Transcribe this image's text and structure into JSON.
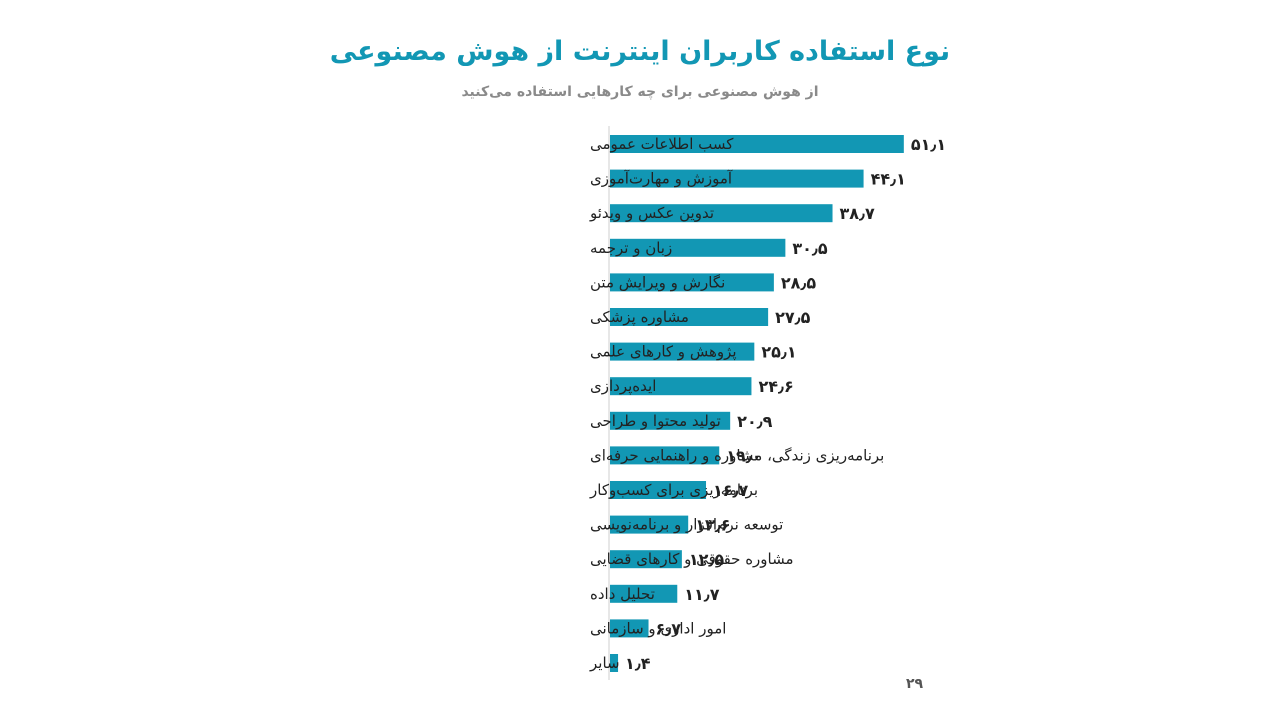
{
  "header": {
    "title": "نوع استفاده کاربران اینترنت از هوش مصنوعی",
    "subtitle": "از هوش مصنوعی برای چه کارهایی استفاده می‌کنید"
  },
  "footer": {
    "page_number": "۲۹"
  },
  "colors": {
    "bar": "#1297b4",
    "title": "#1297b4",
    "axis": "#cfcfcf"
  },
  "chart_data": {
    "type": "bar",
    "orientation": "horizontal",
    "title": "نوع استفاده کاربران اینترنت از هوش مصنوعی",
    "subtitle": "از هوش مصنوعی برای چه کارهایی استفاده می‌کنید",
    "categories": [
      "کسب اطلاعات عمومی",
      "آموزش و مهارت‌آموزی",
      "تدوین عکس و ویدئو",
      "زبان و ترجمه",
      "نگارش و ویرایش متن",
      "مشاوره پزشکی",
      "پژوهش و کارهای علمی",
      "ایده‌پردازی",
      "تولید محتوا و طراحی",
      "برنامه‌ریزی زندگی، مشاوره و راهنمایی حرفه‌ای",
      "برنامه‌ریزی برای کسب‌وکار",
      "توسعه نرم‌افزار و برنامه‌نویسی",
      "مشاوره حقوقی و کارهای قضایی",
      "تحلیل داده",
      "امور اداری و سازمانی",
      "سایر"
    ],
    "values": [
      51.1,
      44.1,
      38.7,
      30.5,
      28.5,
      27.5,
      25.1,
      24.6,
      20.9,
      19.0,
      16.7,
      13.6,
      12.5,
      11.7,
      6.7,
      1.4
    ],
    "value_labels": [
      "۵۱٫۱",
      "۴۴٫۱",
      "۳۸٫۷",
      "۳۰٫۵",
      "۲۸٫۵",
      "۲۷٫۵",
      "۲۵٫۱",
      "۲۴٫۶",
      "۲۰٫۹",
      "۱۹٫۰",
      "۱۶٫۷",
      "۱۳٫۶",
      "۱۲٫۵",
      "۱۱٫۷",
      "۶٫۷",
      "۱٫۴"
    ],
    "grid": false,
    "legend": "none"
  }
}
